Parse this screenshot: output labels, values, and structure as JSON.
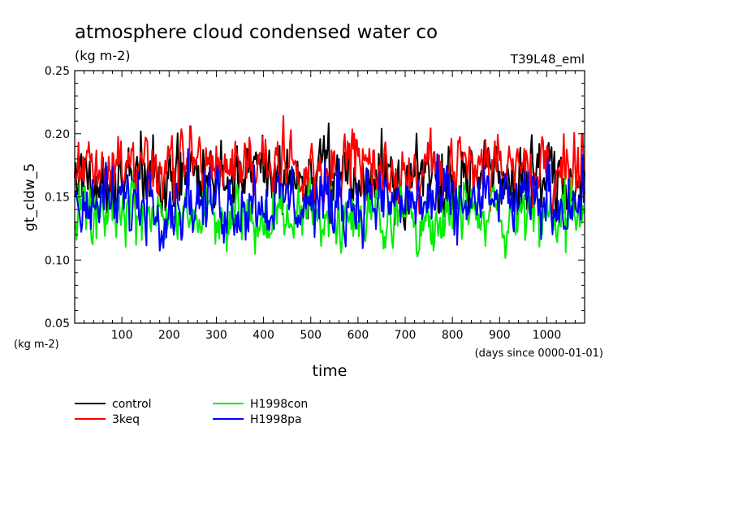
{
  "chart_data": {
    "type": "line",
    "title": "atmosphere cloud condensed water co",
    "subtitle": "(kg m-2)",
    "run_label": "T39L48_eml",
    "ylabel": "gt_cldw_5",
    "yunit": "(kg m-2)",
    "xlabel": "time",
    "xunit": "(days since 0000-01-01)",
    "xlim": [
      0,
      1080
    ],
    "ylim": [
      0.05,
      0.25
    ],
    "xticks": [
      100,
      200,
      300,
      400,
      500,
      600,
      700,
      800,
      900,
      1000
    ],
    "yticks": [
      "0.05",
      "0.10",
      "0.15",
      "0.20",
      "0.25"
    ],
    "grid": false,
    "legend_position": "bottom-left",
    "series": [
      {
        "name": "control",
        "color": "#000000",
        "mean": 0.165,
        "amplitude": 0.013,
        "x": [
          0,
          135,
          140,
          170,
          240,
          300,
          365,
          430,
          500,
          550,
          650,
          680,
          760,
          900,
          1000,
          1080
        ],
        "values": [
          0.165,
          0.172,
          0.202,
          0.178,
          0.185,
          0.18,
          0.188,
          0.175,
          0.18,
          0.168,
          0.204,
          0.172,
          0.182,
          0.17,
          0.175,
          0.168
        ]
      },
      {
        "name": "3keq",
        "color": "#ff0000",
        "mean": 0.173,
        "amplitude": 0.012,
        "x": [
          0,
          120,
          245,
          300,
          370,
          440,
          500,
          590,
          650,
          760,
          860,
          1000,
          1075
        ],
        "values": [
          0.17,
          0.188,
          0.206,
          0.19,
          0.197,
          0.194,
          0.185,
          0.188,
          0.172,
          0.185,
          0.18,
          0.19,
          0.2
        ]
      },
      {
        "name": "H1998con",
        "color": "#00ee00",
        "mean": 0.135,
        "amplitude": 0.011,
        "x": [
          0,
          130,
          200,
          300,
          400,
          500,
          600,
          700,
          800,
          900,
          1040,
          1080
        ],
        "values": [
          0.125,
          0.112,
          0.135,
          0.13,
          0.12,
          0.14,
          0.13,
          0.135,
          0.125,
          0.13,
          0.106,
          0.14
        ]
      },
      {
        "name": "H1998pa",
        "color": "#0000ff",
        "mean": 0.145,
        "amplitude": 0.012,
        "x": [
          0,
          155,
          240,
          300,
          380,
          450,
          560,
          620,
          700,
          810,
          900,
          1000,
          1080
        ],
        "values": [
          0.15,
          0.165,
          0.188,
          0.16,
          0.175,
          0.16,
          0.18,
          0.172,
          0.145,
          0.112,
          0.15,
          0.165,
          0.17
        ]
      }
    ]
  }
}
